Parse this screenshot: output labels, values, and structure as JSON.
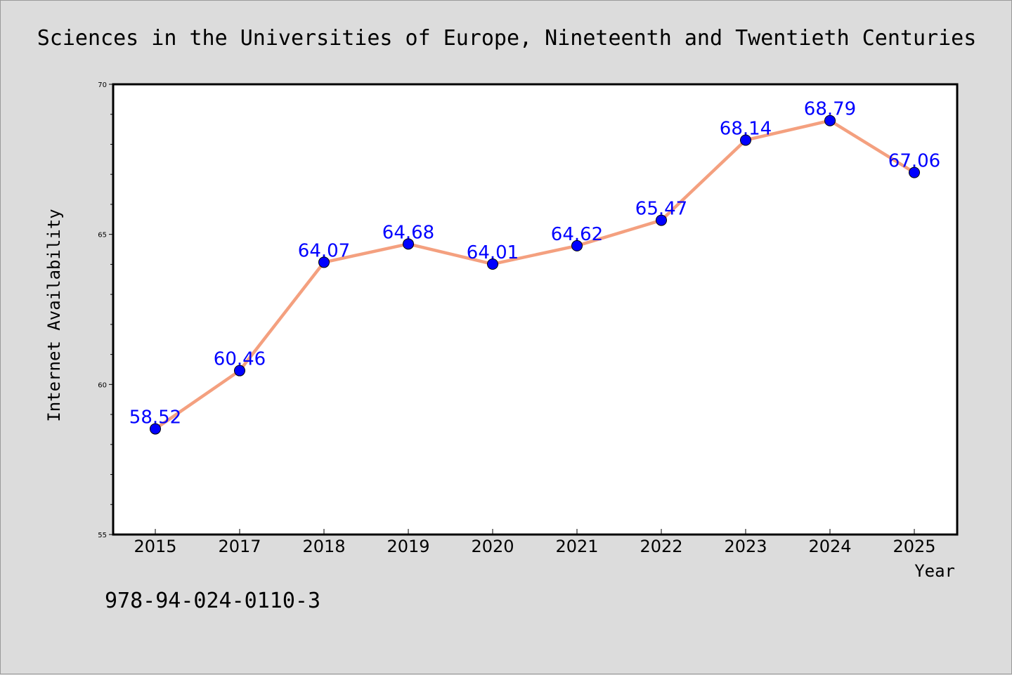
{
  "chart_data": {
    "type": "line",
    "title": "Sciences in the Universities of Europe, Nineteenth and Twentieth Centuries",
    "xlabel": "Year",
    "ylabel": "Internet Availability",
    "categories": [
      "2015",
      "2017",
      "2018",
      "2019",
      "2020",
      "2021",
      "2022",
      "2023",
      "2024",
      "2025"
    ],
    "series": [
      {
        "values": [
          58.52,
          60.46,
          64.07,
          64.68,
          64.01,
          64.62,
          65.47,
          68.14,
          68.79,
          67.06
        ],
        "labels": [
          "58.52",
          "60.46",
          "64.07",
          "64.68",
          "64.01",
          "64.62",
          "65.47",
          "68.14",
          "68.79",
          "67.06"
        ]
      }
    ],
    "ylim": [
      55,
      70
    ],
    "yticks": [
      "55",
      "60",
      "65",
      "70"
    ],
    "grid": false,
    "colors": {
      "line": "#f4a07f",
      "marker": "#0000ff",
      "data_label": "#0000ff",
      "background": "#dcdcdc",
      "plot_background": "#ffffff"
    }
  },
  "footer": {
    "isbn": "978-94-024-0110-3"
  }
}
